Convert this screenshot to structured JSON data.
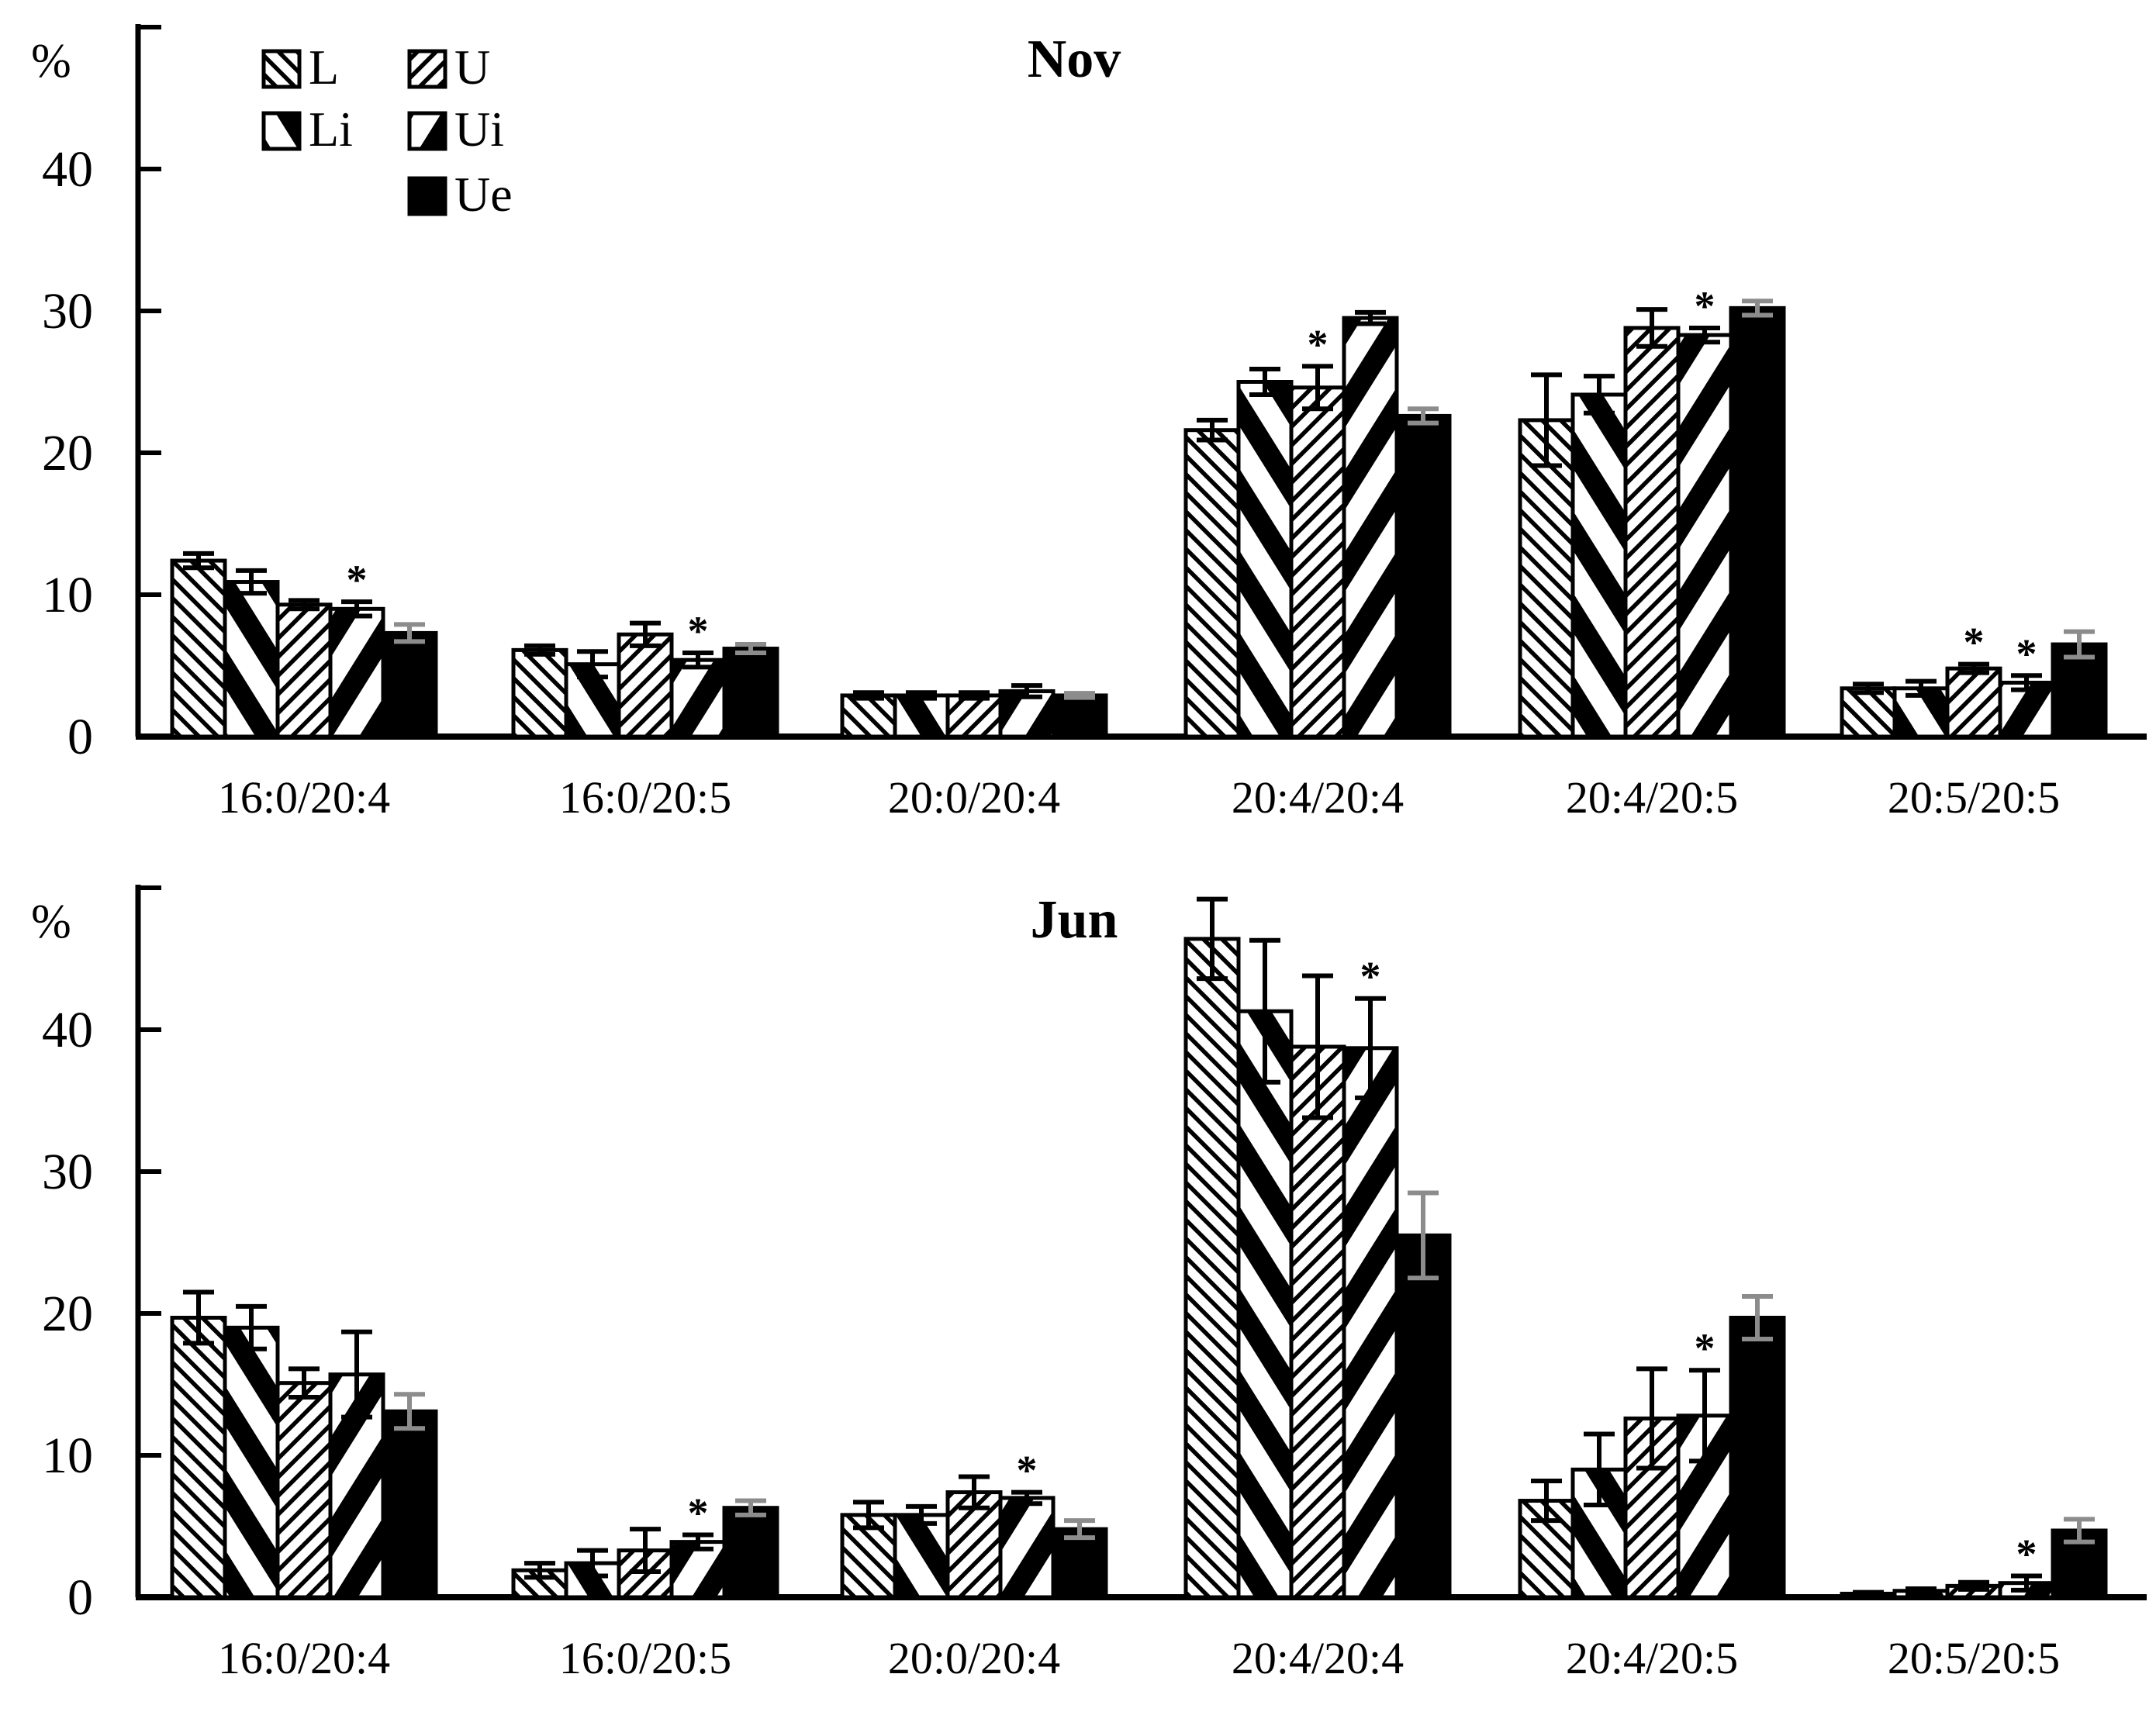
{
  "figure": {
    "background": "#ffffff",
    "ink": "#000000",
    "error_bar_gray_on_black": "#8c8c8c",
    "significance_marker": "*"
  },
  "chart_data": [
    {
      "type": "bar",
      "title": "Nov",
      "ylabel": "%",
      "ylim": [
        0,
        50
      ],
      "yticks": [
        0,
        10,
        20,
        30,
        40
      ],
      "unlabeled_top_tick": 50,
      "grid": false,
      "legend_position": "top-left-inside",
      "legend_columns": [
        [
          "L",
          "Li"
        ],
        [
          "U",
          "Ui",
          "Ue"
        ]
      ],
      "categories": [
        "16:0/20:4",
        "16:0/20:5",
        "20:0/20:4",
        "20:4/20:4",
        "20:4/20:5",
        "20:5/20:5"
      ],
      "series": [
        {
          "name": "L",
          "pattern": "thin-backslash-hatch",
          "values": [
            12.4,
            6.1,
            2.9,
            21.6,
            22.3,
            3.4
          ],
          "errors": [
            0.5,
            0.3,
            0.2,
            0.7,
            3.2,
            0.3
          ],
          "sig": [
            0,
            0,
            0,
            0,
            0,
            0
          ]
        },
        {
          "name": "Li",
          "pattern": "thick-backslash-stripes",
          "values": [
            10.9,
            5.1,
            2.9,
            25.0,
            24.1,
            3.4
          ],
          "errors": [
            0.8,
            0.9,
            0.2,
            0.9,
            1.3,
            0.5
          ],
          "sig": [
            0,
            0,
            0,
            0,
            0,
            0
          ]
        },
        {
          "name": "U",
          "pattern": "thin-forwardslash-hatch",
          "values": [
            9.3,
            7.2,
            2.9,
            24.6,
            28.8,
            4.8
          ],
          "errors": [
            0.3,
            0.8,
            0.2,
            1.5,
            1.3,
            0.3
          ],
          "sig": [
            0,
            0,
            0,
            1,
            0,
            1
          ]
        },
        {
          "name": "Ui",
          "pattern": "thick-forwardslash-stripes",
          "values": [
            9.0,
            5.4,
            3.2,
            29.5,
            28.3,
            3.8
          ],
          "errors": [
            0.5,
            0.5,
            0.4,
            0.4,
            0.5,
            0.5
          ],
          "sig": [
            1,
            1,
            0,
            0,
            1,
            1
          ]
        },
        {
          "name": "Ue",
          "pattern": "solid-black",
          "values": [
            7.3,
            6.2,
            2.9,
            22.6,
            30.2,
            6.5
          ],
          "errors": [
            0.6,
            0.3,
            0.15,
            0.5,
            0.5,
            0.9
          ],
          "sig": [
            0,
            0,
            0,
            0,
            0,
            0
          ]
        }
      ]
    },
    {
      "type": "bar",
      "title": "Jun",
      "ylabel": "%",
      "ylim": [
        0,
        50
      ],
      "yticks": [
        0,
        10,
        20,
        30,
        40
      ],
      "unlabeled_top_tick": 50,
      "grid": false,
      "legend_position": "none",
      "categories": [
        "16:0/20:4",
        "16:0/20:5",
        "20:0/20:4",
        "20:4/20:4",
        "20:4/20:5",
        "20:5/20:5"
      ],
      "series": [
        {
          "name": "L",
          "pattern": "thin-backslash-hatch",
          "values": [
            19.7,
            1.9,
            5.8,
            46.4,
            6.8,
            0.25
          ],
          "errors": [
            1.8,
            0.5,
            0.9,
            2.8,
            1.4,
            0.1
          ],
          "sig": [
            0,
            0,
            0,
            0,
            0,
            0
          ]
        },
        {
          "name": "Li",
          "pattern": "thick-backslash-stripes",
          "values": [
            19.0,
            2.4,
            5.8,
            41.3,
            9.0,
            0.45
          ],
          "errors": [
            1.5,
            0.9,
            0.6,
            5.0,
            2.5,
            0.15
          ],
          "sig": [
            0,
            0,
            0,
            0,
            0,
            0
          ]
        },
        {
          "name": "U",
          "pattern": "thin-forwardslash-hatch",
          "values": [
            15.1,
            3.3,
            7.4,
            38.8,
            12.6,
            0.8
          ],
          "errors": [
            1.0,
            1.5,
            1.1,
            5.0,
            3.5,
            0.25
          ],
          "sig": [
            0,
            0,
            0,
            0,
            0,
            0
          ]
        },
        {
          "name": "Ui",
          "pattern": "thick-forwardslash-stripes",
          "values": [
            15.7,
            3.9,
            7.0,
            38.7,
            12.8,
            1.0
          ],
          "errors": [
            3.0,
            0.5,
            0.4,
            3.5,
            3.2,
            0.5
          ],
          "sig": [
            0,
            1,
            1,
            1,
            1,
            1
          ]
        },
        {
          "name": "Ue",
          "pattern": "solid-black",
          "values": [
            13.1,
            6.3,
            4.8,
            25.5,
            19.7,
            4.7
          ],
          "errors": [
            1.2,
            0.5,
            0.6,
            3.0,
            1.5,
            0.8
          ],
          "sig": [
            0,
            0,
            0,
            0,
            0,
            0
          ]
        }
      ]
    }
  ]
}
